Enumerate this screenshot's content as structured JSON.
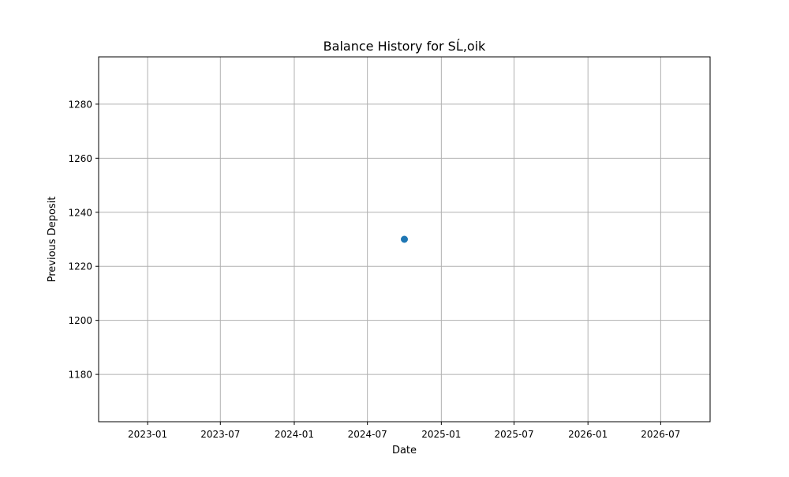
{
  "chart_data": {
    "type": "scatter",
    "title": "Balance History for SĹ‚oik",
    "xlabel": "Date",
    "ylabel": "Previous Deposit",
    "x_axis_type": "date",
    "xlim": [
      "2022-09-01",
      "2026-11-01"
    ],
    "ylim": [
      1162.5,
      1297.5
    ],
    "x_ticks": [
      "2023-01",
      "2023-07",
      "2024-01",
      "2024-07",
      "2025-01",
      "2025-07",
      "2026-01",
      "2026-07"
    ],
    "y_ticks": [
      1180,
      1200,
      1220,
      1240,
      1260,
      1280
    ],
    "grid": true,
    "points": [
      {
        "x": "2024-10-01",
        "y": 1230
      }
    ],
    "marker_color": "#1f77b4"
  }
}
